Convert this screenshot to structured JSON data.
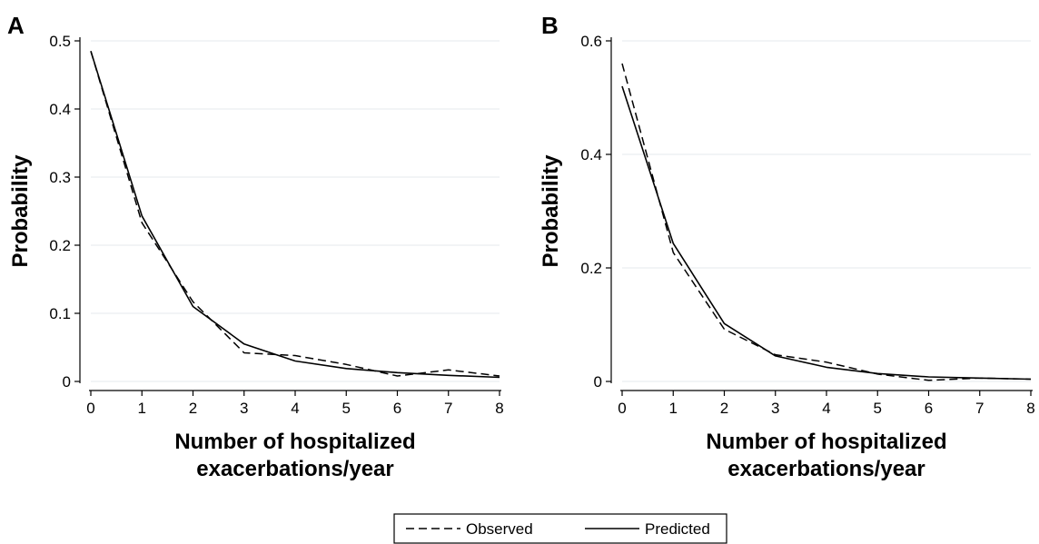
{
  "chart_data": [
    {
      "type": "line",
      "panel": "A",
      "xlabel": [
        "Number of hospitalized",
        "exacerbations/year"
      ],
      "ylabel": "Probability",
      "x": [
        0,
        1,
        2,
        3,
        4,
        5,
        6,
        7,
        8
      ],
      "xticks": [
        "0",
        "1",
        "2",
        "3",
        "4",
        "5",
        "6",
        "7",
        "8"
      ],
      "yticks": [
        {
          "value": 0,
          "label": "0"
        },
        {
          "value": 0.1,
          "label": "0.1"
        },
        {
          "value": 0.2,
          "label": "0.2"
        },
        {
          "value": 0.3,
          "label": "0.3"
        },
        {
          "value": 0.4,
          "label": "0.4"
        },
        {
          "value": 0.5,
          "label": "0.5"
        }
      ],
      "xlim": [
        0,
        8
      ],
      "ylim": [
        0,
        0.5
      ],
      "grid": true,
      "series": [
        {
          "name": "Observed",
          "style": "dashed",
          "values": [
            0.485,
            0.233,
            0.117,
            0.042,
            0.038,
            0.025,
            0.008,
            0.017,
            0.008
          ]
        },
        {
          "name": "Predicted",
          "style": "solid",
          "values": [
            0.485,
            0.243,
            0.11,
            0.055,
            0.03,
            0.019,
            0.013,
            0.009,
            0.006
          ]
        }
      ]
    },
    {
      "type": "line",
      "panel": "B",
      "xlabel": [
        "Number of hospitalized",
        "exacerbations/year"
      ],
      "ylabel": "Probability",
      "x": [
        0,
        1,
        2,
        3,
        4,
        5,
        6,
        7,
        8
      ],
      "xticks": [
        "0",
        "1",
        "2",
        "3",
        "4",
        "5",
        "6",
        "7",
        "8"
      ],
      "yticks": [
        {
          "value": 0,
          "label": "0"
        },
        {
          "value": 0.2,
          "label": "0.2"
        },
        {
          "value": 0.4,
          "label": "0.4"
        },
        {
          "value": 0.6,
          "label": "0.6"
        }
      ],
      "xlim": [
        0,
        8
      ],
      "ylim": [
        0,
        0.6
      ],
      "grid": true,
      "series": [
        {
          "name": "Observed",
          "style": "dashed",
          "values": [
            0.56,
            0.227,
            0.092,
            0.047,
            0.034,
            0.013,
            0.002,
            0.006,
            0.004
          ]
        },
        {
          "name": "Predicted",
          "style": "solid",
          "values": [
            0.52,
            0.243,
            0.102,
            0.045,
            0.025,
            0.014,
            0.008,
            0.006,
            0.004
          ]
        }
      ]
    }
  ],
  "legend": {
    "placement": "bottom-center",
    "items": [
      {
        "label": "Observed",
        "style": "dashed"
      },
      {
        "label": "Predicted",
        "style": "solid"
      }
    ]
  }
}
